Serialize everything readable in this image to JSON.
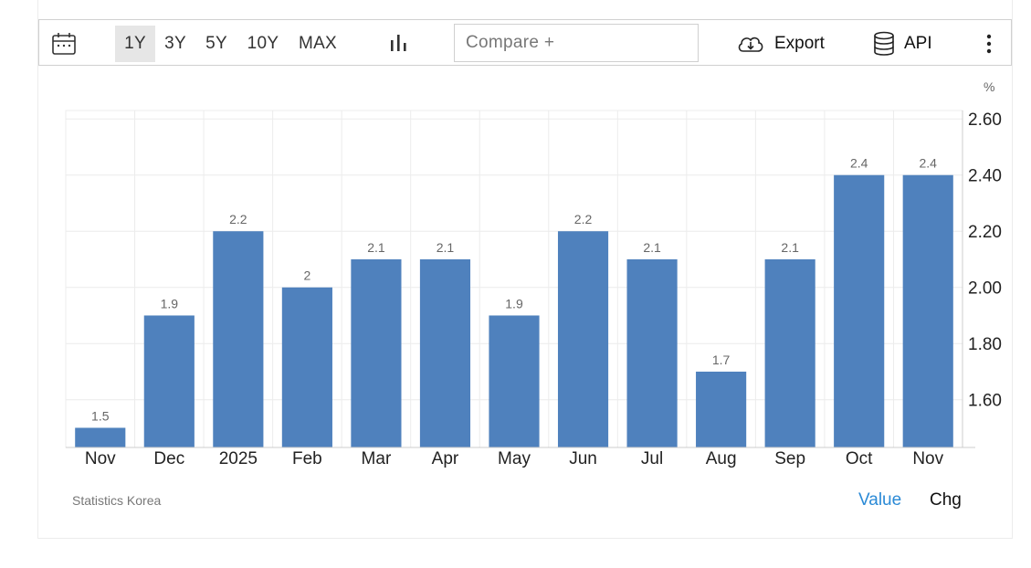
{
  "toolbar": {
    "ranges": [
      "1Y",
      "3Y",
      "5Y",
      "10Y",
      "MAX"
    ],
    "active_range": "1Y",
    "compare_placeholder": "Compare +",
    "export_label": "Export",
    "api_label": "API",
    "icons": [
      "calendar-icon",
      "bar-chart-icon",
      "cloud-download-icon",
      "database-icon",
      "more-vertical-icon"
    ]
  },
  "unit_label": "%",
  "source": "Statistics Korea",
  "toggles": {
    "value_label": "Value",
    "chg_label": "Chg"
  },
  "colors": {
    "bar": "#4f81bd",
    "active_toggle": "#2b8ad6",
    "grid": "#ececec"
  },
  "chart_data": {
    "type": "bar",
    "categories": [
      "Nov",
      "Dec",
      "2025",
      "Feb",
      "Mar",
      "Apr",
      "May",
      "Jun",
      "Jul",
      "Aug",
      "Sep",
      "Oct",
      "Nov"
    ],
    "values": [
      1.5,
      1.9,
      2.2,
      2,
      2.1,
      2.1,
      1.9,
      2.2,
      2.1,
      1.7,
      2.1,
      2.4,
      2.4
    ],
    "data_labels": [
      "1.5",
      "1.9",
      "2.2",
      "2",
      "2.1",
      "2.1",
      "1.9",
      "2.2",
      "2.1",
      "1.7",
      "2.1",
      "2.4",
      "2.4"
    ],
    "y_ticks": [
      1.6,
      1.8,
      2.0,
      2.2,
      2.4,
      2.6
    ],
    "y_tick_labels": [
      "1.60",
      "1.80",
      "2.00",
      "2.20",
      "2.40",
      "2.60"
    ],
    "ylim": [
      1.43,
      2.63
    ],
    "y_axis_side": "right",
    "grid": true,
    "legend": "none"
  }
}
